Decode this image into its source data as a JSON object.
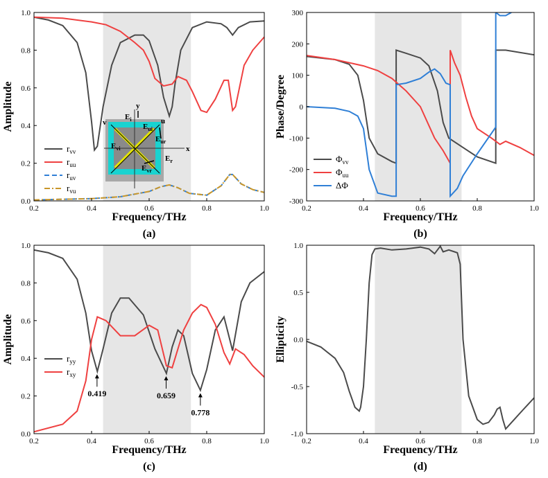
{
  "figure": {
    "band": [
      0.44,
      0.745
    ],
    "colors": {
      "black": "#4a4a4a",
      "red": "#ef4040",
      "blue": "#2f7fd6",
      "orange": "#c8962a",
      "band": "#e6e6e6"
    }
  },
  "chart_data": [
    {
      "type": "line",
      "panel": "(a)",
      "xlabel": "Frequency/THz",
      "ylabel": "Amplitude",
      "xlim": [
        0.2,
        1.0
      ],
      "ylim": [
        0,
        1.0
      ],
      "xticks": [
        "0.2",
        "0.4",
        "0.6",
        "0.8",
        "1.0"
      ],
      "yticks": [
        "0.0",
        "0.2",
        "0.4",
        "0.6",
        "0.8",
        "1.0"
      ],
      "series": [
        {
          "name": "r_vv",
          "color": "black",
          "dash": "",
          "x": [
            0.2,
            0.25,
            0.3,
            0.35,
            0.38,
            0.4,
            0.41,
            0.42,
            0.44,
            0.47,
            0.5,
            0.55,
            0.58,
            0.6,
            0.63,
            0.65,
            0.67,
            0.68,
            0.69,
            0.71,
            0.75,
            0.8,
            0.85,
            0.87,
            0.89,
            0.91,
            0.95,
            1.0
          ],
          "y": [
            0.975,
            0.96,
            0.93,
            0.84,
            0.68,
            0.42,
            0.27,
            0.29,
            0.5,
            0.72,
            0.84,
            0.88,
            0.88,
            0.85,
            0.72,
            0.55,
            0.45,
            0.5,
            0.62,
            0.8,
            0.92,
            0.95,
            0.94,
            0.92,
            0.88,
            0.92,
            0.95,
            0.955
          ]
        },
        {
          "name": "r_uu",
          "color": "red",
          "dash": "",
          "x": [
            0.2,
            0.3,
            0.4,
            0.45,
            0.5,
            0.55,
            0.58,
            0.6,
            0.62,
            0.65,
            0.68,
            0.7,
            0.73,
            0.75,
            0.78,
            0.8,
            0.83,
            0.86,
            0.875,
            0.89,
            0.9,
            0.93,
            0.96,
            1.0
          ],
          "y": [
            0.975,
            0.97,
            0.95,
            0.935,
            0.9,
            0.84,
            0.8,
            0.74,
            0.65,
            0.61,
            0.62,
            0.66,
            0.64,
            0.58,
            0.48,
            0.47,
            0.54,
            0.64,
            0.64,
            0.48,
            0.5,
            0.72,
            0.8,
            0.87
          ]
        },
        {
          "name": "r_uv",
          "color": "blue",
          "dash": "7 4",
          "x": [
            0.2,
            0.4,
            0.5,
            0.6,
            0.64,
            0.67,
            0.7,
            0.74,
            0.8,
            0.85,
            0.88,
            0.89,
            0.92,
            0.96,
            1.0
          ],
          "y": [
            0.005,
            0.012,
            0.022,
            0.05,
            0.075,
            0.085,
            0.07,
            0.04,
            0.03,
            0.08,
            0.14,
            0.14,
            0.09,
            0.06,
            0.045
          ]
        },
        {
          "name": "r_vu",
          "color": "orange",
          "dash": "8 3 2 3",
          "x": [
            0.2,
            0.4,
            0.5,
            0.6,
            0.64,
            0.67,
            0.7,
            0.74,
            0.8,
            0.85,
            0.88,
            0.89,
            0.92,
            0.96,
            1.0
          ],
          "y": [
            0.005,
            0.012,
            0.022,
            0.05,
            0.075,
            0.085,
            0.07,
            0.04,
            0.03,
            0.08,
            0.14,
            0.14,
            0.09,
            0.06,
            0.045
          ]
        }
      ],
      "annotations": [],
      "inset_labels": [
        "y",
        "x",
        "u",
        "v",
        "E",
        "E",
        "E",
        "E",
        "E",
        "E"
      ],
      "inset_subs": [
        "i",
        "r",
        "ui",
        "ur",
        "vi",
        "vr"
      ]
    },
    {
      "type": "line",
      "panel": "(b)",
      "xlabel": "Frequency/THz",
      "ylabel": "Phase/Degree",
      "xlim": [
        0.2,
        1.0
      ],
      "ylim": [
        -300,
        300
      ],
      "xticks": [
        "0.2",
        "0.4",
        "0.6",
        "0.8",
        "1.0"
      ],
      "yticks": [
        "-300",
        "-200",
        "-100",
        "0",
        "100",
        "200",
        "300"
      ],
      "series": [
        {
          "name": "Φ_vv",
          "color": "black",
          "dash": "",
          "x": [
            0.2,
            0.3,
            0.35,
            0.38,
            0.4,
            0.42,
            0.45,
            0.5,
            0.515,
            0.515,
            0.55,
            0.6,
            0.63,
            0.66,
            0.68,
            0.7,
            0.75,
            0.8,
            0.865,
            0.865,
            0.9,
            1.0
          ],
          "y": [
            160,
            150,
            135,
            100,
            20,
            -100,
            -150,
            -175,
            -180,
            180,
            170,
            155,
            130,
            50,
            -50,
            -100,
            -130,
            -160,
            -180,
            180,
            180,
            165
          ]
        },
        {
          "name": "Φ_uu",
          "color": "red",
          "dash": "",
          "x": [
            0.2,
            0.3,
            0.4,
            0.45,
            0.5,
            0.55,
            0.6,
            0.63,
            0.65,
            0.68,
            0.705,
            0.705,
            0.72,
            0.74,
            0.76,
            0.78,
            0.8,
            0.85,
            0.88,
            0.9,
            0.95,
            1.0
          ],
          "y": [
            163,
            150,
            130,
            115,
            90,
            50,
            0,
            -60,
            -100,
            -140,
            -180,
            180,
            140,
            100,
            30,
            -30,
            -70,
            -100,
            -120,
            -110,
            -130,
            -155
          ]
        },
        {
          "name": "ΔΦ",
          "color": "blue",
          "dash": "",
          "x": [
            0.2,
            0.3,
            0.35,
            0.38,
            0.4,
            0.42,
            0.45,
            0.5,
            0.515,
            0.515,
            0.55,
            0.6,
            0.63,
            0.65,
            0.67,
            0.69,
            0.705,
            0.705,
            0.73,
            0.75,
            0.8,
            0.865,
            0.865,
            0.88,
            0.9,
            0.92
          ],
          "y": [
            0,
            -5,
            -15,
            -30,
            -70,
            -200,
            -275,
            -285,
            -285,
            70,
            75,
            90,
            110,
            120,
            105,
            75,
            70,
            -285,
            -260,
            -220,
            -150,
            -65,
            300,
            290,
            290,
            300
          ]
        }
      ],
      "annotations": []
    },
    {
      "type": "line",
      "panel": "(c)",
      "xlabel": "Frequency/THz",
      "ylabel": "Amplitude",
      "xlim": [
        0.2,
        1.0
      ],
      "ylim": [
        0,
        1.0
      ],
      "xticks": [
        "0.2",
        "0.4",
        "0.6",
        "0.8",
        "1.0"
      ],
      "yticks": [
        "0.0",
        "0.2",
        "0.4",
        "0.6",
        "0.8",
        "1.0"
      ],
      "series": [
        {
          "name": "r_yy",
          "color": "black",
          "dash": "",
          "x": [
            0.2,
            0.25,
            0.3,
            0.35,
            0.38,
            0.4,
            0.42,
            0.44,
            0.47,
            0.5,
            0.53,
            0.58,
            0.62,
            0.66,
            0.68,
            0.7,
            0.72,
            0.75,
            0.778,
            0.8,
            0.83,
            0.86,
            0.88,
            0.89,
            0.92,
            0.95,
            1.0
          ],
          "y": [
            0.975,
            0.96,
            0.93,
            0.82,
            0.64,
            0.44,
            0.33,
            0.45,
            0.64,
            0.72,
            0.72,
            0.63,
            0.45,
            0.32,
            0.46,
            0.55,
            0.52,
            0.32,
            0.23,
            0.34,
            0.55,
            0.62,
            0.5,
            0.44,
            0.7,
            0.8,
            0.86
          ]
        },
        {
          "name": "r_xy",
          "color": "red",
          "dash": "",
          "x": [
            0.2,
            0.3,
            0.35,
            0.38,
            0.4,
            0.42,
            0.45,
            0.5,
            0.55,
            0.6,
            0.63,
            0.66,
            0.68,
            0.72,
            0.75,
            0.78,
            0.8,
            0.83,
            0.86,
            0.88,
            0.9,
            0.93,
            0.96,
            1.0
          ],
          "y": [
            0.01,
            0.05,
            0.12,
            0.28,
            0.5,
            0.62,
            0.6,
            0.52,
            0.52,
            0.575,
            0.55,
            0.36,
            0.35,
            0.55,
            0.64,
            0.685,
            0.67,
            0.58,
            0.43,
            0.37,
            0.45,
            0.42,
            0.36,
            0.3
          ]
        }
      ],
      "annotations": [
        {
          "text": "0.419",
          "x": 0.419,
          "y": 0.33
        },
        {
          "text": "0.659",
          "x": 0.659,
          "y": 0.32
        },
        {
          "text": "0.778",
          "x": 0.778,
          "y": 0.23
        }
      ]
    },
    {
      "type": "line",
      "panel": "(d)",
      "xlabel": "Frequency/THz",
      "ylabel": "Ellipticity",
      "xlim": [
        0.2,
        1.0
      ],
      "ylim": [
        -1.0,
        1.0
      ],
      "xticks": [
        "0.2",
        "0.4",
        "0.6",
        "0.8",
        "1.0"
      ],
      "yticks": [
        "-1.0",
        "-0.5",
        "0.0",
        "0.5",
        "1.0"
      ],
      "series": [
        {
          "name": "ellipticity",
          "color": "black",
          "dash": "",
          "x": [
            0.2,
            0.25,
            0.3,
            0.33,
            0.35,
            0.37,
            0.385,
            0.39,
            0.4,
            0.41,
            0.42,
            0.43,
            0.44,
            0.46,
            0.5,
            0.55,
            0.6,
            0.63,
            0.65,
            0.66,
            0.67,
            0.68,
            0.7,
            0.72,
            0.73,
            0.74,
            0.75,
            0.77,
            0.8,
            0.82,
            0.84,
            0.86,
            0.87,
            0.88,
            0.89,
            0.9,
            0.93,
            0.96,
            1.0
          ],
          "y": [
            -0.02,
            -0.08,
            -0.2,
            -0.35,
            -0.55,
            -0.72,
            -0.76,
            -0.72,
            -0.5,
            0.0,
            0.6,
            0.9,
            0.96,
            0.97,
            0.95,
            0.96,
            0.98,
            0.96,
            0.91,
            0.95,
            0.99,
            0.93,
            0.95,
            0.93,
            0.92,
            0.8,
            0.0,
            -0.6,
            -0.85,
            -0.9,
            -0.88,
            -0.8,
            -0.74,
            -0.72,
            -0.85,
            -0.95,
            -0.85,
            -0.75,
            -0.62
          ]
        }
      ],
      "annotations": []
    }
  ]
}
